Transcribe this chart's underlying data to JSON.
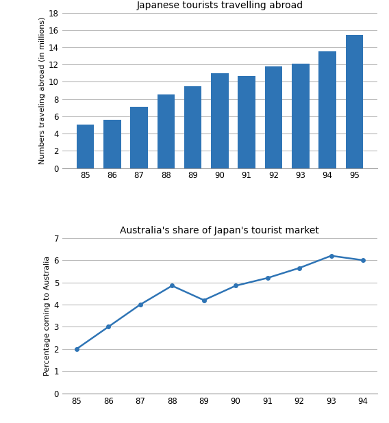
{
  "bar_years": [
    85,
    86,
    87,
    88,
    89,
    90,
    91,
    92,
    93,
    94,
    95
  ],
  "bar_values": [
    5.0,
    5.6,
    7.1,
    8.5,
    9.5,
    11.0,
    10.7,
    11.8,
    12.1,
    13.5,
    15.4
  ],
  "bar_color": "#2E74B5",
  "bar_title": "Japanese tourists travelling abroad",
  "bar_ylabel": "Numbers traveling abroad (in millions)",
  "bar_ylim": [
    0,
    18
  ],
  "bar_yticks": [
    0,
    2,
    4,
    6,
    8,
    10,
    12,
    14,
    16,
    18
  ],
  "line_years": [
    85,
    86,
    87,
    88,
    89,
    90,
    91,
    92,
    93,
    94
  ],
  "line_values": [
    2.0,
    3.0,
    4.0,
    4.85,
    4.2,
    4.85,
    5.2,
    5.65,
    6.2,
    6.0
  ],
  "line_color": "#2E74B5",
  "line_title": "Australia's share of Japan's tourist market",
  "line_ylabel": "Percentage coming to Australia",
  "line_ylim": [
    0,
    7
  ],
  "line_yticks": [
    0,
    1,
    2,
    3,
    4,
    5,
    6,
    7
  ],
  "background_color": "#FFFFFF",
  "grid_color": "#BBBBBB",
  "spine_color": "#999999"
}
